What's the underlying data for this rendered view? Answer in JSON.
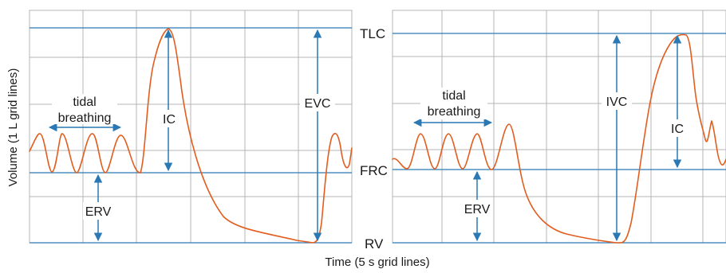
{
  "colors": {
    "grid": "#b4b4b4",
    "level_lines": "#2a79b4",
    "trace": "#e25d1e",
    "arrows": "#2a79b4"
  },
  "axes": {
    "y_label": "Volume (1 L grid lines)",
    "x_label": "Time (5 s grid lines)"
  },
  "levels": {
    "tlc": "TLC",
    "frc": "FRC",
    "rv": "RV"
  },
  "left_panel": {
    "tidal_line1": "tidal",
    "tidal_line2": "breathing",
    "ic": "IC",
    "evc": "EVC",
    "erv": "ERV"
  },
  "right_panel": {
    "tidal_line1": "tidal",
    "tidal_line2": "breathing",
    "ivc": "IVC",
    "ic": "IC",
    "erv": "ERV"
  },
  "icons": [
    "double-arrow-icon",
    "vertical-double-arrow-icon"
  ]
}
